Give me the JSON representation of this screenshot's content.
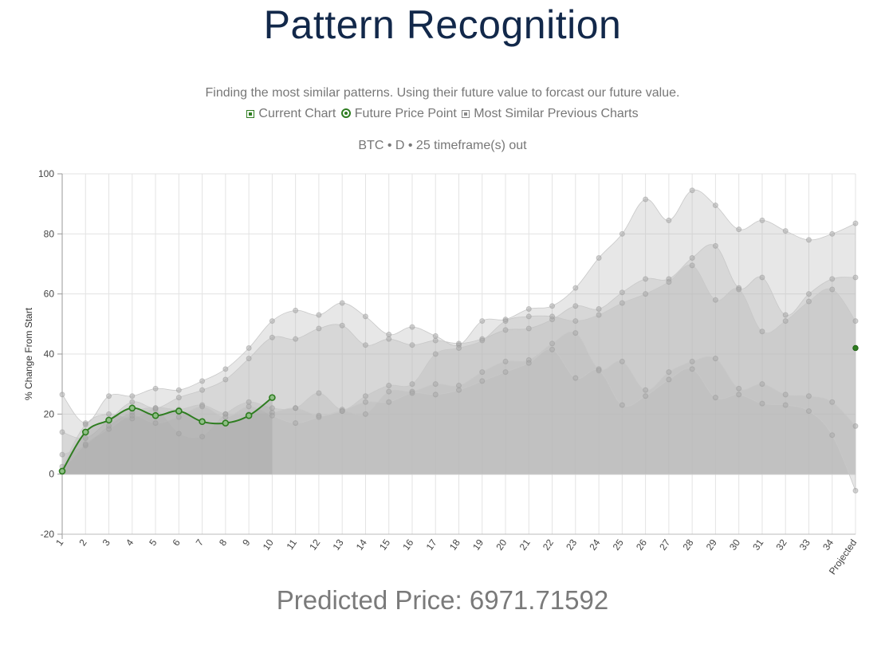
{
  "page": {
    "title": "Pattern Recognition",
    "subtitle": "Finding the most similar patterns. Using their future value to forcast our future value.",
    "legend": {
      "current_chart": "Current Chart",
      "future_price_point": "Future Price Point",
      "similar_charts": "Most Similar Previous Charts"
    },
    "meta": "BTC • D • 25 timeframe(s) out",
    "predicted": "Predicted Price: 6971.71592"
  },
  "colors": {
    "current": "#2e7d20",
    "similar_fill": "#b9b9b9",
    "similar_point": "#a8a8a8",
    "grid": "#e3e3e3",
    "title": "#12284a"
  },
  "chart_data": {
    "type": "area",
    "title": "",
    "xlabel": "",
    "ylabel": "% Change From Start",
    "ylim": [
      -20,
      100
    ],
    "yticks": [
      -20,
      0,
      20,
      40,
      60,
      80,
      100
    ],
    "grid": true,
    "categories": [
      "1",
      "2",
      "3",
      "4",
      "5",
      "6",
      "7",
      "8",
      "9",
      "10",
      "11",
      "12",
      "13",
      "14",
      "15",
      "16",
      "17",
      "18",
      "19",
      "20",
      "21",
      "22",
      "23",
      "24",
      "25",
      "26",
      "27",
      "28",
      "29",
      "30",
      "31",
      "32",
      "33",
      "34",
      "Projected"
    ],
    "current": {
      "name": "Current Chart",
      "values": [
        1,
        14,
        18,
        22,
        19.5,
        21,
        17.5,
        17,
        19.5,
        25.5
      ]
    },
    "future_point": {
      "name": "Future Price Point",
      "x": "Projected",
      "value": 42
    },
    "series": [
      {
        "values": [
          26.5,
          17,
          26,
          26,
          28.5,
          28,
          31,
          35,
          42,
          51,
          54.5,
          53,
          57,
          52.5,
          46.5,
          49,
          46,
          43,
          51,
          51.5,
          55,
          56,
          62,
          72,
          80,
          91.5,
          84.5,
          94.5,
          89.5,
          81.5,
          84.5,
          81,
          78,
          80,
          83.5
        ]
      },
      {
        "values": [
          14,
          12,
          18,
          24,
          22,
          25.5,
          28,
          31.5,
          38.5,
          45.5,
          45,
          48.5,
          49.5,
          43,
          45,
          43,
          44.5,
          43.5,
          45,
          48,
          48.5,
          51.5,
          56,
          55,
          60.5,
          65,
          65,
          72,
          76,
          62,
          65.5,
          53,
          60,
          65,
          65.5
        ]
      },
      {
        "values": [
          6.5,
          9.5,
          16,
          20.5,
          21.5,
          13.5,
          12.5,
          20,
          24,
          22,
          22,
          27,
          21.5,
          26,
          29.5,
          30,
          40,
          42,
          44.5,
          51,
          52.5,
          52.5,
          51,
          53,
          57,
          60,
          64,
          69.5,
          58,
          61.5,
          47.5,
          51,
          57.5,
          61.5,
          51
        ]
      },
      {
        "values": [
          2.5,
          16.5,
          20,
          18.5,
          22,
          21.5,
          23,
          20,
          20,
          20.5,
          22,
          19.5,
          21,
          20,
          27.5,
          27.5,
          30,
          29.5,
          34,
          37.5,
          38,
          43.5,
          47,
          35,
          37.5,
          28,
          34,
          37.5,
          38.5,
          28.5,
          30,
          26.5,
          26,
          24,
          16
        ]
      },
      {
        "values": [
          1,
          10,
          15,
          19.5,
          17,
          19,
          22.5,
          19,
          22.5,
          19.5,
          17,
          19,
          21,
          24,
          24,
          27,
          26.5,
          28,
          31,
          34,
          37,
          41.5,
          32,
          34.5,
          23,
          26,
          31.5,
          35,
          25.5,
          26.5,
          23.5,
          23,
          21,
          13,
          -5.5
        ]
      }
    ]
  }
}
